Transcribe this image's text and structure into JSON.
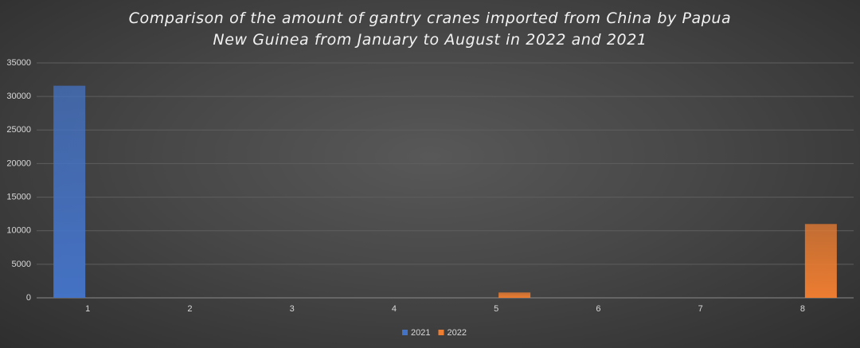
{
  "chart_data": {
    "type": "bar",
    "title": "Comparison of the amount of gantry cranes imported from China by Papua New Guinea from January to August in 2022 and 2021",
    "categories": [
      "1",
      "2",
      "3",
      "4",
      "5",
      "6",
      "7",
      "8"
    ],
    "series": [
      {
        "name": "2021",
        "color": "#4472c4",
        "values": [
          31600,
          0,
          0,
          0,
          0,
          0,
          0,
          0
        ]
      },
      {
        "name": "2022",
        "color": "#ed7d31",
        "values": [
          0,
          0,
          0,
          0,
          800,
          0,
          0,
          11000
        ]
      }
    ],
    "ylim": [
      0,
      35000
    ],
    "yticks": [
      0,
      5000,
      10000,
      15000,
      20000,
      25000,
      30000,
      35000
    ],
    "grid": true
  }
}
